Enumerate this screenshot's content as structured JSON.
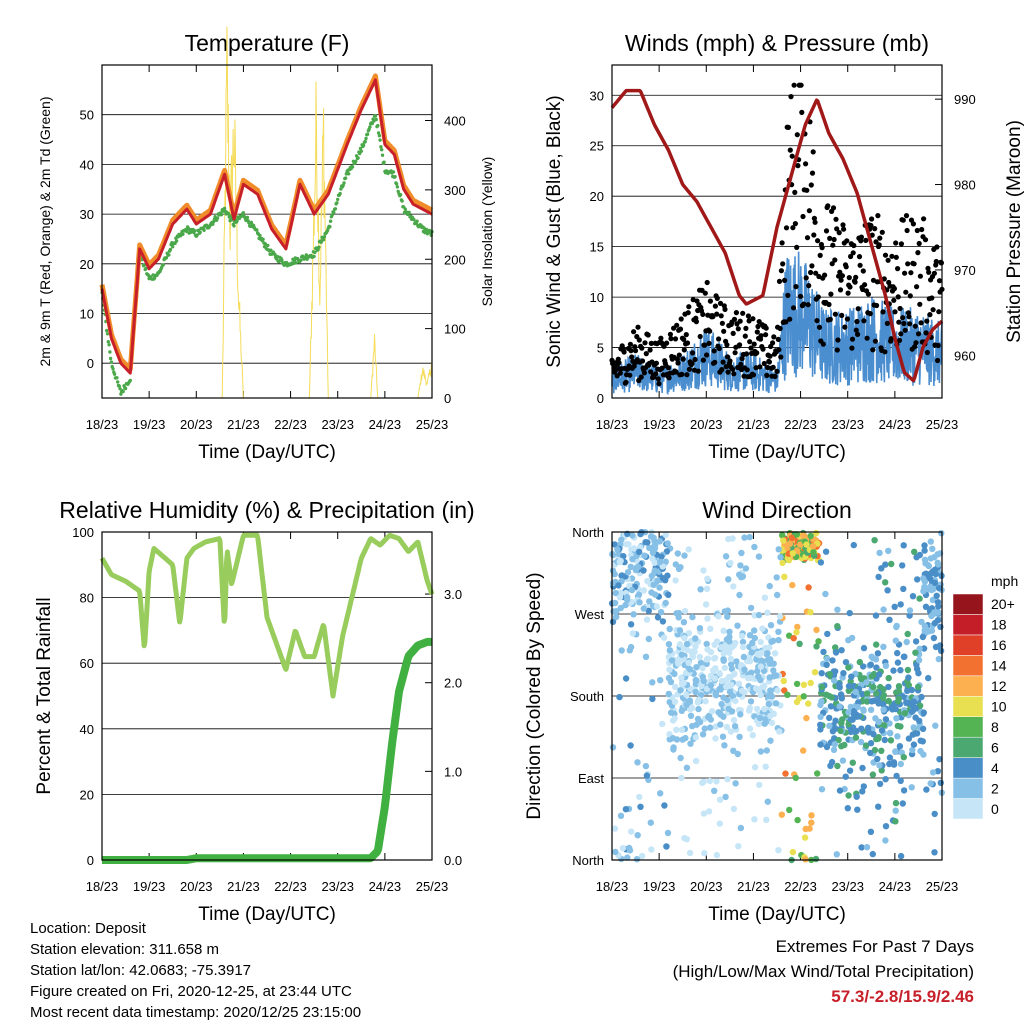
{
  "x_ticks": [
    "18/23",
    "19/23",
    "20/23",
    "21/23",
    "22/23",
    "23/23",
    "24/23",
    "25/23"
  ],
  "colors": {
    "temp_2m": "#c8202a",
    "temp_9m": "#f08c2a",
    "dewpoint": "#4aa84a",
    "solar": "#f5dc5a",
    "wind": "#4a8ed0",
    "gust": "#000000",
    "pressure": "#a01818",
    "rh": "#98cc5c",
    "precip": "#40b040",
    "extremes": "#c8202a"
  },
  "chart_data": [
    {
      "type": "line",
      "title": "Temperature (F)",
      "xlabel": "Time (Day/UTC)",
      "ylabel": "2m & 9m T (Red, Orange) & 2m Td (Green)",
      "y2label": "Solar Insolation (Yellow)",
      "ylim": [
        -7,
        60
      ],
      "yticks": [
        0,
        10,
        20,
        30,
        40,
        50
      ],
      "y2lim": [
        0,
        480
      ],
      "y2ticks": [
        0,
        100,
        200,
        300,
        400
      ],
      "x": [
        0,
        0.2,
        0.4,
        0.6,
        0.8,
        1.0,
        1.2,
        1.5,
        1.8,
        2.0,
        2.3,
        2.6,
        2.8,
        3.0,
        3.3,
        3.6,
        3.9,
        4.2,
        4.5,
        4.8,
        5.0,
        5.2,
        5.5,
        5.8,
        6.0,
        6.2,
        6.4,
        6.6,
        6.8,
        7.0
      ],
      "series": [
        {
          "name": "2m T",
          "values": [
            15,
            5,
            0,
            -2,
            23,
            19,
            21,
            28,
            31,
            28,
            30,
            38,
            29,
            36,
            34,
            27,
            23,
            36,
            30,
            34,
            39,
            44,
            51,
            57,
            44,
            42,
            35,
            32,
            31,
            30
          ]
        },
        {
          "name": "2m Td",
          "values": [
            14,
            0,
            -6,
            -3,
            22,
            17,
            18,
            24,
            27,
            26,
            28,
            31,
            28,
            30,
            26,
            22,
            20,
            21,
            22,
            27,
            33,
            38,
            43,
            50,
            39,
            38,
            31,
            29,
            27,
            26
          ]
        },
        {
          "name": "Solar",
          "x": [
            0,
            2.55,
            2.65,
            2.72,
            2.8,
            2.9,
            3.0,
            4.4,
            4.55,
            4.62,
            4.7,
            4.8,
            5.7,
            5.78,
            5.85,
            6.7,
            6.8,
            6.9,
            7.0
          ],
          "values": [
            0,
            0,
            460,
            250,
            380,
            140,
            0,
            0,
            400,
            150,
            380,
            0,
            0,
            80,
            0,
            0,
            40,
            20,
            50
          ]
        }
      ]
    },
    {
      "type": "scatter",
      "title": "Winds (mph) & Pressure (mb)",
      "xlabel": "Time (Day/UTC)",
      "ylabel": "Sonic Wind & Gust (Blue, Black)",
      "y2label": "Station Pressure (Maroon)",
      "ylim": [
        0,
        33
      ],
      "yticks": [
        0,
        5,
        10,
        15,
        20,
        25,
        30
      ],
      "y2lim": [
        955,
        994
      ],
      "y2ticks": [
        960,
        970,
        980,
        990
      ],
      "series": [
        {
          "name": "Pressure",
          "x": [
            0,
            0.3,
            0.6,
            0.9,
            1.2,
            1.5,
            1.8,
            2.1,
            2.4,
            2.7,
            2.85,
            3.2,
            3.5,
            3.8,
            4.1,
            4.35,
            4.6,
            4.9,
            5.2,
            5.5,
            5.8,
            6.0,
            6.2,
            6.4,
            6.6,
            6.8,
            7.0
          ],
          "values": [
            989,
            991,
            991,
            987,
            984,
            980,
            978,
            975,
            972,
            967,
            966,
            967,
            975,
            981,
            987,
            990,
            986,
            983,
            979,
            973,
            967,
            962,
            958,
            957,
            961,
            963,
            964
          ]
        },
        {
          "name": "Wind",
          "x": [
            0,
            0.5,
            1.0,
            1.5,
            2.0,
            2.5,
            3.0,
            3.5,
            3.7,
            4.0,
            4.5,
            5.0,
            5.5,
            6.0,
            6.5,
            7.0
          ],
          "values": [
            2,
            3,
            2,
            3,
            5,
            3,
            3,
            2,
            10,
            10,
            6,
            6,
            7,
            6,
            6,
            5
          ]
        },
        {
          "name": "Gust",
          "x": [
            0,
            0.5,
            1.0,
            1.5,
            2.0,
            2.5,
            3.0,
            3.5,
            3.7,
            4.0,
            4.5,
            5.0,
            5.5,
            6.0,
            6.5,
            7.0
          ],
          "values": [
            3,
            5,
            4,
            6,
            8,
            6,
            6,
            4,
            20,
            25,
            14,
            12,
            13,
            12,
            13,
            10
          ]
        }
      ]
    },
    {
      "type": "line",
      "title": "Relative Humidity (%) & Precipitation (in)",
      "xlabel": "Time (Day/UTC)",
      "ylabel": "Percent & Total Rainfall",
      "ylim": [
        0,
        100
      ],
      "yticks": [
        0,
        20,
        40,
        60,
        80,
        100
      ],
      "y2lim": [
        0,
        3.7
      ],
      "y2ticks": [
        0.0,
        1.0,
        2.0,
        3.0
      ],
      "y2ticklabels": [
        "0.0",
        "1.0",
        "2.0",
        "3.0"
      ],
      "series": [
        {
          "name": "RH",
          "x": [
            0,
            0.2,
            0.5,
            0.8,
            0.9,
            1.0,
            1.1,
            1.5,
            1.65,
            1.8,
            1.95,
            2.2,
            2.5,
            2.6,
            2.65,
            2.75,
            3.0,
            3.3,
            3.5,
            3.7,
            3.9,
            4.1,
            4.3,
            4.5,
            4.7,
            4.9,
            5.1,
            5.3,
            5.5,
            5.7,
            5.9,
            6.1,
            6.3,
            6.5,
            6.7,
            6.9,
            7.0
          ],
          "values": [
            92,
            87,
            85,
            82,
            64,
            88,
            95,
            90,
            72,
            92,
            95,
            97,
            98,
            70,
            95,
            84,
            99,
            99,
            74,
            66,
            58,
            70,
            62,
            62,
            72,
            50,
            68,
            80,
            92,
            98,
            96,
            99,
            98,
            94,
            97,
            85,
            81
          ]
        },
        {
          "name": "Precip",
          "x": [
            0,
            1.8,
            2.0,
            5.7,
            5.85,
            6.0,
            6.15,
            6.3,
            6.5,
            6.7,
            6.9,
            7.0
          ],
          "values": [
            0,
            0,
            0.02,
            0.02,
            0.1,
            0.6,
            1.3,
            1.9,
            2.3,
            2.42,
            2.46,
            2.46
          ]
        }
      ]
    },
    {
      "type": "scatter",
      "title": "Wind Direction",
      "xlabel": "Time (Day/UTC)",
      "ylabel": "Direction (Colored By Speed)",
      "yticklabels": [
        "North",
        "East",
        "South",
        "West",
        "North"
      ],
      "yticks": [
        0,
        90,
        180,
        270,
        360
      ],
      "colorbar_label": "mph",
      "colorbar_ticks": [
        "0",
        "2",
        "4",
        "6",
        "8",
        "10",
        "12",
        "14",
        "16",
        "18",
        "20+"
      ],
      "colorbar_colors": [
        "#c6e6f8",
        "#86c0e6",
        "#4a8ec8",
        "#4aa870",
        "#54b454",
        "#e8e050",
        "#fcb050",
        "#f27030",
        "#e04028",
        "#c41e28",
        "#96141c"
      ]
    }
  ],
  "info": {
    "location": "Location: Deposit",
    "elevation": "Station elevation: 311.658 m",
    "latlon": "Station lat/lon: 42.0683; -75.3917",
    "created": "Figure created on Fri, 2020-12-25, at 23:44 UTC",
    "recent": "Most recent data timestamp: 2020/12/25 23:15:00"
  },
  "extremes": {
    "title": "Extremes For Past 7 Days",
    "subtitle": "(High/Low/Max Wind/Total Precipitation)",
    "values": "57.3/-2.8/15.9/2.46"
  }
}
